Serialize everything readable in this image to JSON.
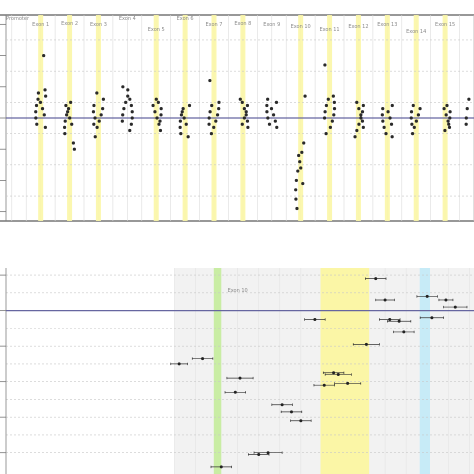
{
  "chart_data": [
    {
      "type": "scatter",
      "title": "",
      "regions": [
        {
          "name": "Promoter",
          "x": 0.2
        },
        {
          "name": "Exon 1",
          "x": 1.0
        },
        {
          "name": "Exon 2",
          "x": 2.0
        },
        {
          "name": "Exon 3",
          "x": 3.0
        },
        {
          "name": "Exon 4",
          "x": 4.0
        },
        {
          "name": "Exon 5",
          "x": 5.0
        },
        {
          "name": "Exon 6",
          "x": 6.0
        },
        {
          "name": "Exon 7",
          "x": 7.0
        },
        {
          "name": "Exon 8",
          "x": 8.0
        },
        {
          "name": "Exon 9",
          "x": 9.0
        },
        {
          "name": "Exon 10",
          "x": 10.0
        },
        {
          "name": "Exon 11",
          "x": 11.0
        },
        {
          "name": "Exon 12",
          "x": 12.0
        },
        {
          "name": "Exon 13",
          "x": 13.0
        },
        {
          "name": "Exon 14",
          "x": 14.0
        },
        {
          "name": "Exon 15",
          "x": 15.0
        }
      ],
      "xlim": [
        -0.2,
        16.0
      ],
      "ylim": [
        -3.3,
        3.3
      ],
      "baseline": 0,
      "highlight_bands": [
        {
          "x": 1.0,
          "color": "#fbf6a6"
        },
        {
          "x": 2.0,
          "color": "#fbf6a6"
        },
        {
          "x": 3.0,
          "color": "#fbf6a6"
        },
        {
          "x": 5.0,
          "color": "#fbf6a6"
        },
        {
          "x": 6.0,
          "color": "#fbf6a6"
        },
        {
          "x": 7.0,
          "color": "#fbf6a6"
        },
        {
          "x": 8.0,
          "color": "#fbf6a6"
        },
        {
          "x": 10.0,
          "color": "#fbf6a6"
        },
        {
          "x": 11.0,
          "color": "#fbf6a6"
        },
        {
          "x": 12.0,
          "color": "#fbf6a6"
        },
        {
          "x": 13.0,
          "color": "#fbf6a6"
        },
        {
          "x": 14.0,
          "color": "#fbf6a6"
        },
        {
          "x": 15.0,
          "color": "#fbf6a6"
        }
      ],
      "clusters": [
        {
          "x": 1.0,
          "y": [
            0.6,
            0.4,
            0.2,
            0.0,
            -0.2,
            0.8,
            0.5,
            0.3,
            0.1,
            -0.3,
            0.7,
            0.9,
            2.0
          ]
        },
        {
          "x": 2.0,
          "y": [
            0.5,
            0.3,
            0.1,
            -0.1,
            -0.3,
            -0.5,
            0.4,
            0.2,
            0.0,
            -0.2,
            -0.8,
            -1.0
          ]
        },
        {
          "x": 3.0,
          "y": [
            0.6,
            0.3,
            0.1,
            -0.1,
            -0.3,
            -0.6,
            0.4,
            0.2,
            -0.2,
            0.0,
            0.8
          ]
        },
        {
          "x": 4.0,
          "y": [
            0.9,
            0.6,
            0.4,
            0.2,
            0.0,
            -0.2,
            -0.4,
            0.7,
            0.5,
            0.3,
            0.1,
            -0.1,
            1.0
          ]
        },
        {
          "x": 5.0,
          "y": [
            0.4,
            0.2,
            0.0,
            -0.2,
            -0.4,
            0.3,
            0.1,
            -0.1,
            0.5,
            0.6
          ]
        },
        {
          "x": 6.0,
          "y": [
            0.3,
            0.1,
            -0.1,
            -0.3,
            -0.5,
            0.2,
            0.0,
            -0.2,
            -0.6,
            0.4
          ]
        },
        {
          "x": 7.0,
          "y": [
            0.5,
            0.3,
            0.1,
            -0.1,
            -0.3,
            0.4,
            0.2,
            0.0,
            -0.2,
            1.2,
            -0.5
          ]
        },
        {
          "x": 8.0,
          "y": [
            0.5,
            0.3,
            0.1,
            -0.1,
            -0.3,
            0.4,
            0.2,
            0.0,
            -0.2,
            0.6
          ]
        },
        {
          "x": 9.0,
          "y": [
            0.6,
            0.4,
            0.2,
            0.0,
            -0.2,
            0.3,
            0.1,
            -0.1,
            0.5,
            -0.3
          ]
        },
        {
          "x": 10.0,
          "y": [
            0.7,
            -0.8,
            -1.1,
            -1.4,
            -1.7,
            -2.0,
            -2.3,
            -2.6,
            -2.9,
            -1.2,
            -1.6,
            -2.1
          ]
        },
        {
          "x": 11.0,
          "y": [
            0.7,
            0.5,
            0.3,
            0.1,
            -0.1,
            -0.3,
            0.6,
            0.4,
            0.2,
            0.0,
            1.7,
            -0.5
          ]
        },
        {
          "x": 12.0,
          "y": [
            0.5,
            0.3,
            0.1,
            -0.1,
            -0.3,
            0.4,
            0.2,
            0.0,
            -0.2,
            -0.4,
            -0.6
          ]
        },
        {
          "x": 13.0,
          "y": [
            0.3,
            0.1,
            -0.1,
            -0.3,
            -0.5,
            0.2,
            0.0,
            -0.2,
            0.4,
            -0.6
          ]
        },
        {
          "x": 14.0,
          "y": [
            0.3,
            0.1,
            -0.1,
            -0.3,
            -0.5,
            0.2,
            0.0,
            -0.2,
            0.4
          ]
        },
        {
          "x": 15.0,
          "y": [
            0.3,
            0.1,
            -0.1,
            -0.3,
            0.2,
            0.0,
            -0.2,
            0.4,
            -0.4
          ]
        },
        {
          "x": 15.9,
          "y": [
            0.6,
            0.3,
            0.0,
            -0.2
          ]
        }
      ]
    },
    {
      "type": "scatter",
      "title": "",
      "region_label": "Exon 10",
      "xlim": [
        0,
        100
      ],
      "ylim": [
        -4.6,
        1.2
      ],
      "baseline": 0,
      "shaded_range": [
        36,
        103
      ],
      "highlight_bands": [
        {
          "x0": 44.4,
          "x1": 46.0,
          "color": "#c9eda4"
        },
        {
          "x0": 67.2,
          "x1": 77.6,
          "color": "#fbf6a6"
        },
        {
          "x0": 88.4,
          "x1": 90.6,
          "color": "#c7ebf7"
        }
      ],
      "points": [
        {
          "x": 79.0,
          "y": 0.9,
          "err": 2.2
        },
        {
          "x": 90.0,
          "y": 0.4,
          "err": 2.2
        },
        {
          "x": 94.0,
          "y": 0.3,
          "err": 1.5
        },
        {
          "x": 96.0,
          "y": 0.1,
          "err": 2.5
        },
        {
          "x": 81.0,
          "y": 0.3,
          "err": 2.0
        },
        {
          "x": 66.0,
          "y": -0.25,
          "err": 2.2
        },
        {
          "x": 82.0,
          "y": -0.25,
          "err": 2.2
        },
        {
          "x": 84.0,
          "y": -0.3,
          "err": 2.5
        },
        {
          "x": 91.0,
          "y": -0.2,
          "err": 2.5
        },
        {
          "x": 85.0,
          "y": -0.6,
          "err": 2.2
        },
        {
          "x": 77.0,
          "y": -0.95,
          "err": 2.8
        },
        {
          "x": 42.0,
          "y": -1.35,
          "err": 2.2
        },
        {
          "x": 37.0,
          "y": -1.5,
          "err": 1.8
        },
        {
          "x": 70.0,
          "y": -1.75,
          "err": 2.2
        },
        {
          "x": 71.0,
          "y": -1.8,
          "err": 2.8
        },
        {
          "x": 50.0,
          "y": -1.9,
          "err": 2.8
        },
        {
          "x": 73.0,
          "y": -2.05,
          "err": 2.8
        },
        {
          "x": 68.0,
          "y": -2.1,
          "err": 2.2
        },
        {
          "x": 49.0,
          "y": -2.3,
          "err": 2.2
        },
        {
          "x": 59.0,
          "y": -2.65,
          "err": 2.2
        },
        {
          "x": 61.0,
          "y": -2.85,
          "err": 2.2
        },
        {
          "x": 63.0,
          "y": -3.1,
          "err": 2.2
        },
        {
          "x": 56.0,
          "y": -4.0,
          "err": 3.0
        },
        {
          "x": 54.0,
          "y": -4.05,
          "err": 2.2
        },
        {
          "x": 46.0,
          "y": -4.4,
          "err": 2.2
        }
      ]
    }
  ]
}
